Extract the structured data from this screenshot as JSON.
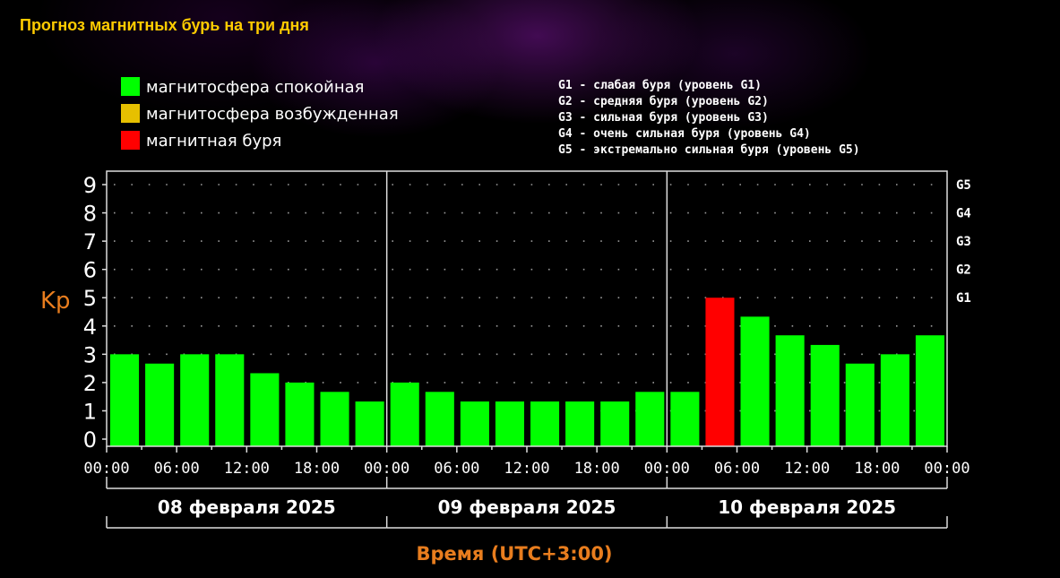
{
  "page": {
    "title": "Прогноз магнитных бурь на три дня"
  },
  "legend": {
    "states": [
      {
        "label": "магнитосфера спокойная",
        "color": "#00ff00"
      },
      {
        "label": "магнитосфера возбужденная",
        "color": "#e6c000"
      },
      {
        "label": "магнитная буря",
        "color": "#ff0000"
      }
    ],
    "levels": [
      "G1 - слабая буря (уровень G1)",
      "G2 - средняя буря (уровень G2)",
      "G3 - сильная буря (уровень G3)",
      "G4 - очень сильная буря (уровень G4)",
      "G5 - экстремально сильная буря (уровень G5)"
    ]
  },
  "chart_data": {
    "type": "bar",
    "title": "Прогноз магнитных бурь на три дня",
    "ylabel": "Kp",
    "xlabel": "Время (UTC+3:00)",
    "ylim": [
      0,
      9
    ],
    "yticks": [
      "0",
      "1",
      "2",
      "3",
      "4",
      "5",
      "6",
      "7",
      "8",
      "9"
    ],
    "g_levels": [
      {
        "label": "G1",
        "kp": 5
      },
      {
        "label": "G2",
        "kp": 6
      },
      {
        "label": "G3",
        "kp": 7
      },
      {
        "label": "G4",
        "kp": 8
      },
      {
        "label": "G5",
        "kp": 9
      }
    ],
    "x_tick_labels": [
      "00:00",
      "06:00",
      "12:00",
      "18:00",
      "00:00",
      "06:00",
      "12:00",
      "18:00",
      "00:00",
      "06:00",
      "12:00",
      "18:00",
      "00:00"
    ],
    "days": [
      "08 февраля 2025",
      "09 февраля 2025",
      "10 февраля 2025"
    ],
    "values": [
      3,
      2.67,
      3,
      3,
      2.33,
      2,
      1.67,
      1.33,
      2,
      1.67,
      1.33,
      1.33,
      1.33,
      1.33,
      1.33,
      1.67,
      1.67,
      5,
      4.33,
      3.67,
      3.33,
      2.67,
      3,
      3.67
    ],
    "grid": true,
    "colors": {
      "quiet": "#00ff00",
      "active": "#e6c000",
      "storm": "#ff0000"
    }
  }
}
